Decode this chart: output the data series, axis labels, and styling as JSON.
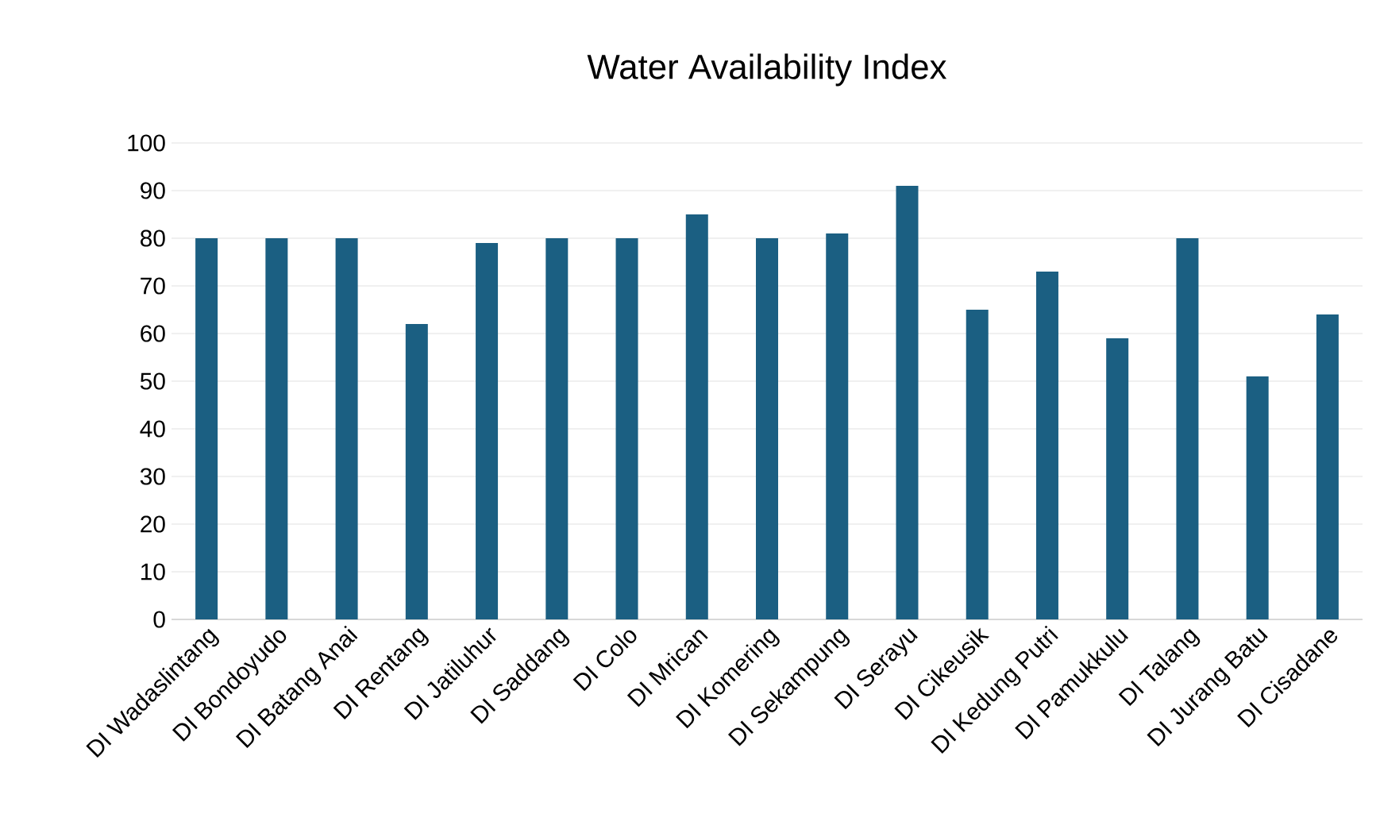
{
  "chart_data": {
    "type": "bar",
    "title": "Water Availability Index",
    "categories": [
      "DI Wadaslintang",
      "DI Bondoyudo",
      "DI Batang Anai",
      "DI Rentang",
      "DI Jatiluhur",
      "DI Saddang",
      "DI Colo",
      "DI Mrican",
      "DI Komering",
      "DI Sekampung",
      "DI Serayu",
      "DI Cikeusik",
      "DI Kedung Putri",
      "DI Pamukkulu",
      "DI Talang",
      "DI Jurang Batu",
      "DI Cisadane"
    ],
    "values": [
      80,
      80,
      80,
      62,
      79,
      80,
      80,
      85,
      80,
      81,
      91,
      65,
      73,
      59,
      80,
      51,
      64
    ],
    "color": "#1b5f82",
    "ylim": [
      0,
      100
    ],
    "yticks": [
      0,
      10,
      20,
      30,
      40,
      50,
      60,
      70,
      80,
      90,
      100
    ],
    "grid": "y"
  }
}
